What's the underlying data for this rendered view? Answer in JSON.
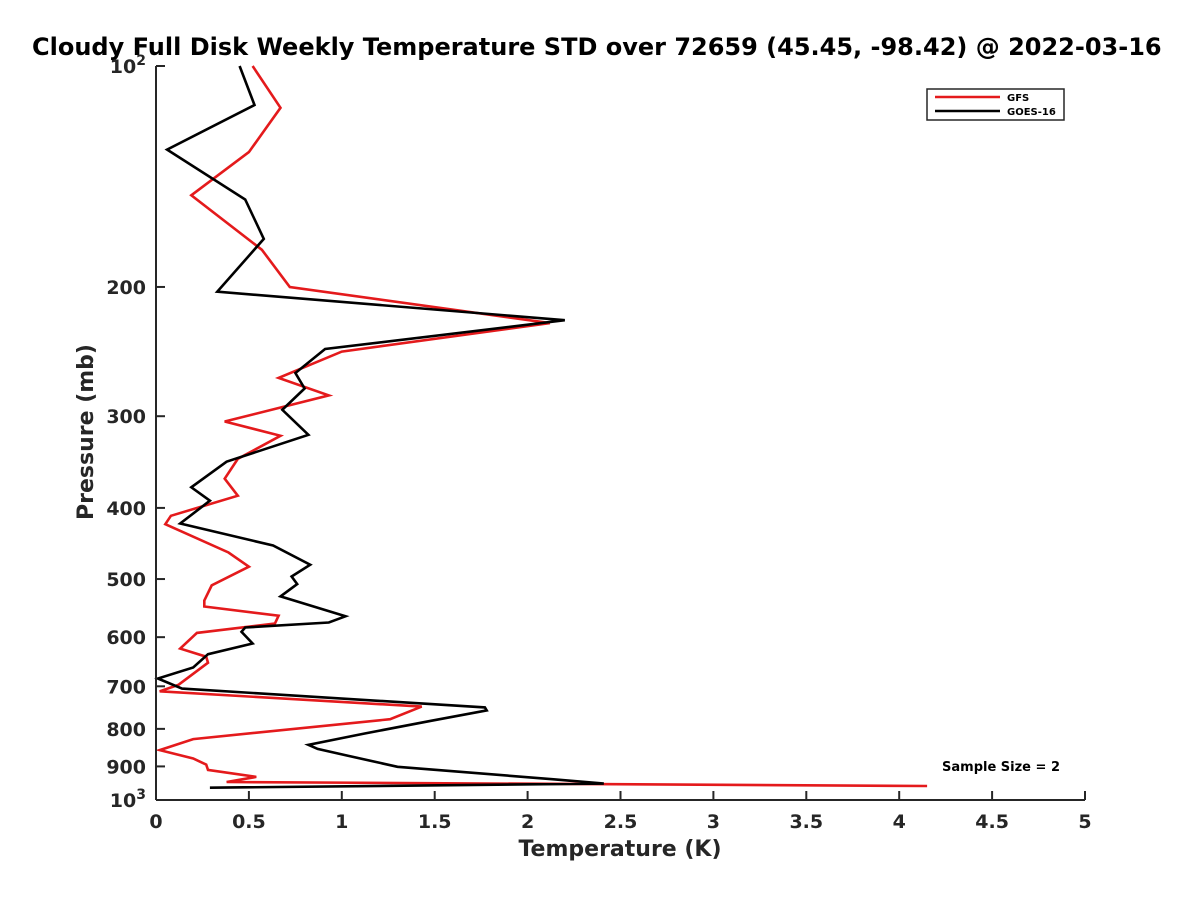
{
  "chart_data": {
    "type": "line",
    "title": "Cloudy Full Disk Weekly Temperature STD over 72659 (45.45, -98.42) @ 2022-03-16",
    "xlabel": "Temperature (K)",
    "ylabel": "Pressure (mb)",
    "xlim": [
      0,
      5
    ],
    "ylim": [
      100,
      1000
    ],
    "yscale": "log",
    "y_reversed": true,
    "x_ticks": [
      0,
      0.5,
      1,
      1.5,
      2,
      2.5,
      3,
      3.5,
      4,
      4.5,
      5
    ],
    "x_tick_labels": [
      "0",
      "0.5",
      "1",
      "1.5",
      "2",
      "2.5",
      "3",
      "3.5",
      "4",
      "4.5",
      "5"
    ],
    "y_ticks": [
      100,
      200,
      300,
      400,
      500,
      600,
      700,
      800,
      900,
      1000
    ],
    "y_tick_labels": [
      "10²",
      "200",
      "300",
      "400",
      "500",
      "600",
      "700",
      "800",
      "900",
      "10³"
    ],
    "grid": false,
    "legend_position": "top-right",
    "series": [
      {
        "name": "GFS",
        "color": "#e41a1c",
        "points": [
          [
            0.52,
            100
          ],
          [
            0.67,
            114
          ],
          [
            0.5,
            131
          ],
          [
            0.19,
            150
          ],
          [
            0.57,
            178
          ],
          [
            0.72,
            200
          ],
          [
            2.12,
            224
          ],
          [
            1.0,
            245
          ],
          [
            0.66,
            266
          ],
          [
            0.93,
            281
          ],
          [
            0.37,
            305
          ],
          [
            0.67,
            319
          ],
          [
            0.44,
            343
          ],
          [
            0.37,
            365
          ],
          [
            0.44,
            385
          ],
          [
            0.08,
            410
          ],
          [
            0.05,
            421
          ],
          [
            0.39,
            460
          ],
          [
            0.5,
            481
          ],
          [
            0.3,
            510
          ],
          [
            0.26,
            535
          ],
          [
            0.26,
            545
          ],
          [
            0.66,
            561
          ],
          [
            0.64,
            575
          ],
          [
            0.22,
            592
          ],
          [
            0.13,
            622
          ],
          [
            0.27,
            638
          ],
          [
            0.28,
            650
          ],
          [
            0.12,
            697
          ],
          [
            0.02,
            711
          ],
          [
            1.43,
            746
          ],
          [
            1.26,
            776
          ],
          [
            0.2,
            826
          ],
          [
            0.02,
            855
          ],
          [
            0.2,
            878
          ],
          [
            0.27,
            895
          ],
          [
            0.28,
            910
          ],
          [
            0.54,
            930
          ],
          [
            0.38,
            945
          ],
          [
            4.15,
            957
          ]
        ]
      },
      {
        "name": "GOES-16",
        "color": "#000000",
        "points": [
          [
            0.45,
            100
          ],
          [
            0.53,
            113
          ],
          [
            0.06,
            130
          ],
          [
            0.48,
            152
          ],
          [
            0.58,
            172
          ],
          [
            0.33,
            203
          ],
          [
            2.2,
            222
          ],
          [
            0.91,
            243
          ],
          [
            0.75,
            262
          ],
          [
            0.8,
            275
          ],
          [
            0.68,
            294
          ],
          [
            0.82,
            318
          ],
          [
            0.38,
            346
          ],
          [
            0.19,
            375
          ],
          [
            0.29,
            391
          ],
          [
            0.13,
            420
          ],
          [
            0.63,
            450
          ],
          [
            0.83,
            478
          ],
          [
            0.73,
            496
          ],
          [
            0.76,
            508
          ],
          [
            0.67,
            528
          ],
          [
            1.02,
            562
          ],
          [
            0.93,
            573
          ],
          [
            0.48,
            582
          ],
          [
            0.46,
            590
          ],
          [
            0.52,
            612
          ],
          [
            0.28,
            633
          ],
          [
            0.2,
            660
          ],
          [
            0.01,
            683
          ],
          [
            0.14,
            705
          ],
          [
            1.77,
            748
          ],
          [
            1.78,
            755
          ],
          [
            1.48,
            780
          ],
          [
            1.12,
            812
          ],
          [
            0.82,
            841
          ],
          [
            0.87,
            852
          ],
          [
            1.03,
            870
          ],
          [
            1.3,
            901
          ],
          [
            2.14,
            937
          ],
          [
            2.41,
            950
          ],
          [
            0.29,
            962
          ]
        ]
      }
    ],
    "annotations": [
      "Sample Size = 2"
    ]
  }
}
